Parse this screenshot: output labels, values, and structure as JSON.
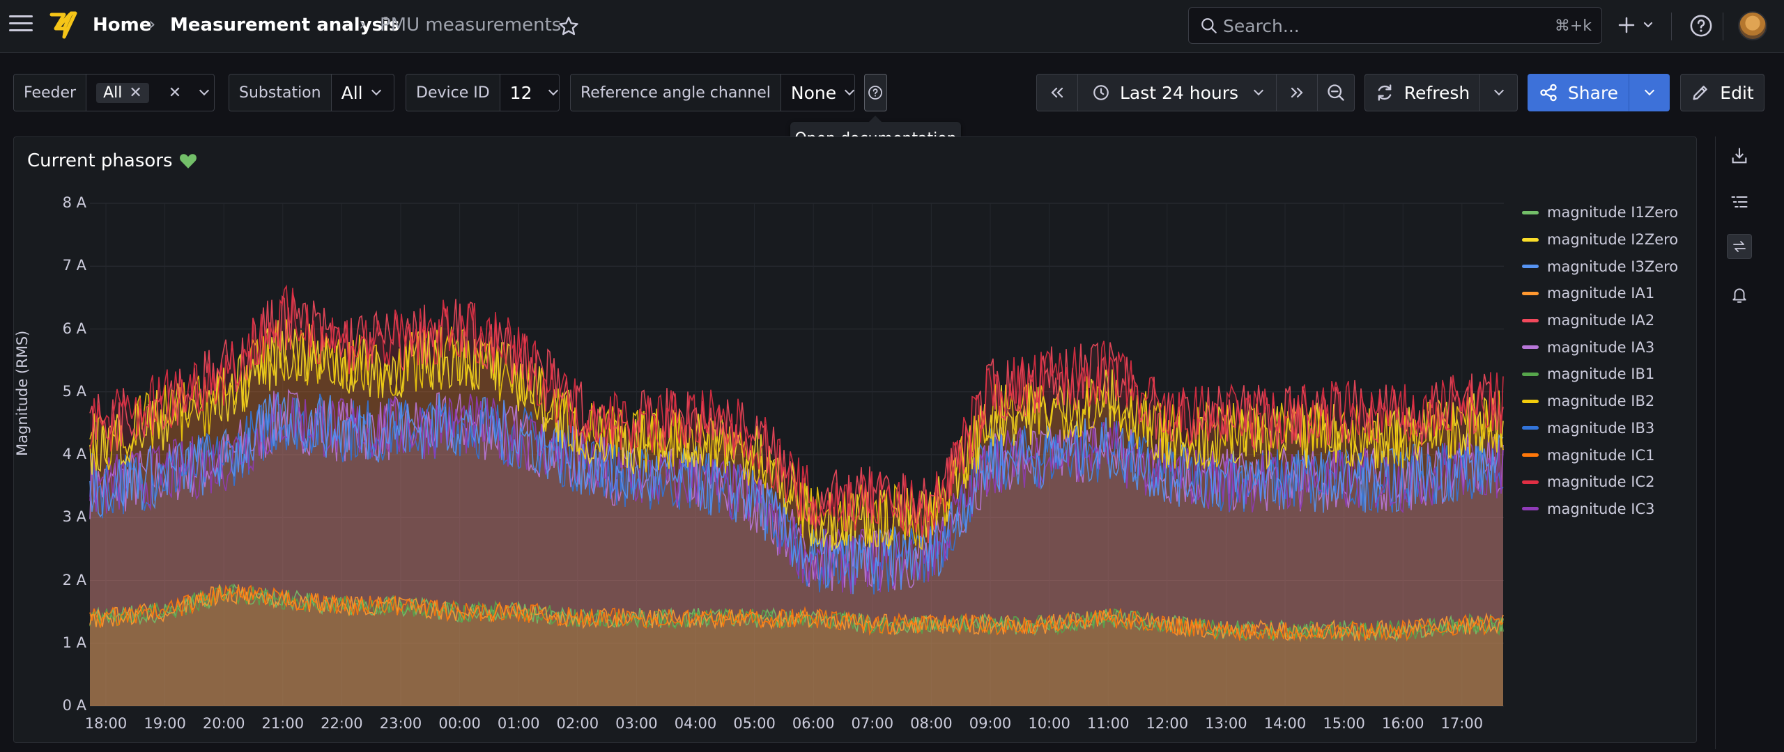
{
  "breadcrumb": {
    "home": "Home",
    "folder": "Measurement analysis",
    "current": "PMU measurements"
  },
  "search": {
    "placeholder": "Search...",
    "shortcut": "⌘+k"
  },
  "variables": {
    "feeder": {
      "label": "Feeder",
      "chip": "All"
    },
    "substation": {
      "label": "Substation",
      "value": "All"
    },
    "device": {
      "label": "Device ID",
      "value": "12"
    },
    "refchannel": {
      "label": "Reference angle channel",
      "value": "None"
    }
  },
  "tooltip": "Open documentation",
  "toolbar": {
    "time_range": "Last 24 hours",
    "refresh": "Refresh",
    "share": "Share",
    "edit": "Edit"
  },
  "panel": {
    "title": "Current phasors",
    "heart_color": "#73bf69"
  },
  "chart_data": {
    "type": "area",
    "title": "Current phasors",
    "ylabel": "Magnitude (RMS)",
    "xlabel": "",
    "ylim": [
      0,
      8
    ],
    "yticks": [
      "0 A",
      "1 A",
      "2 A",
      "3 A",
      "4 A",
      "5 A",
      "6 A",
      "7 A",
      "8 A"
    ],
    "categories": [
      "18:00",
      "19:00",
      "20:00",
      "21:00",
      "22:00",
      "23:00",
      "00:00",
      "01:00",
      "02:00",
      "03:00",
      "04:00",
      "05:00",
      "06:00",
      "07:00",
      "08:00",
      "09:00",
      "10:00",
      "11:00",
      "12:00",
      "13:00",
      "14:00",
      "15:00",
      "16:00",
      "17:00"
    ],
    "legend_position": "right",
    "grid": true,
    "series": [
      {
        "name": "magnitude I1Zero",
        "color": "#73bf69",
        "values": [
          1.4,
          1.5,
          1.8,
          1.7,
          1.6,
          1.6,
          1.5,
          1.5,
          1.4,
          1.4,
          1.4,
          1.4,
          1.4,
          1.3,
          1.3,
          1.3,
          1.3,
          1.4,
          1.3,
          1.2,
          1.2,
          1.2,
          1.2,
          1.3
        ]
      },
      {
        "name": "magnitude I2Zero",
        "color": "#fade2a",
        "values": [
          4.2,
          4.6,
          4.9,
          5.7,
          5.4,
          5.4,
          5.6,
          5.2,
          4.4,
          4.2,
          4.3,
          4.0,
          3.0,
          3.0,
          3.0,
          4.6,
          4.7,
          4.9,
          4.3,
          4.3,
          4.3,
          4.3,
          4.3,
          4.5
        ]
      },
      {
        "name": "magnitude I3Zero",
        "color": "#5794f2",
        "values": [
          3.5,
          3.7,
          3.9,
          4.6,
          4.4,
          4.4,
          4.5,
          4.3,
          3.9,
          3.6,
          3.6,
          3.3,
          2.3,
          2.3,
          2.4,
          3.9,
          4.0,
          4.1,
          3.7,
          3.6,
          3.6,
          3.6,
          3.6,
          3.8
        ]
      },
      {
        "name": "magnitude IA1",
        "color": "#ff9830",
        "values": [
          1.4,
          1.5,
          1.8,
          1.7,
          1.6,
          1.6,
          1.5,
          1.5,
          1.4,
          1.4,
          1.4,
          1.4,
          1.4,
          1.3,
          1.3,
          1.3,
          1.3,
          1.4,
          1.3,
          1.2,
          1.2,
          1.2,
          1.2,
          1.3
        ]
      },
      {
        "name": "magnitude IA2",
        "color": "#f2495c",
        "values": [
          4.5,
          4.9,
          5.3,
          6.2,
          5.8,
          5.8,
          6.0,
          5.6,
          4.7,
          4.5,
          4.6,
          4.3,
          3.2,
          3.3,
          3.1,
          5.0,
          5.2,
          5.3,
          4.6,
          4.6,
          4.6,
          4.7,
          4.6,
          4.8
        ]
      },
      {
        "name": "magnitude IA3",
        "color": "#b877d9",
        "values": [
          3.5,
          3.7,
          3.9,
          4.6,
          4.4,
          4.4,
          4.5,
          4.3,
          3.9,
          3.6,
          3.6,
          3.3,
          2.3,
          2.3,
          2.4,
          3.9,
          4.0,
          4.1,
          3.7,
          3.6,
          3.6,
          3.6,
          3.6,
          3.8
        ]
      },
      {
        "name": "magnitude IB1",
        "color": "#56a64b",
        "values": [
          1.4,
          1.5,
          1.8,
          1.7,
          1.6,
          1.6,
          1.5,
          1.5,
          1.4,
          1.4,
          1.4,
          1.4,
          1.4,
          1.3,
          1.3,
          1.3,
          1.3,
          1.4,
          1.3,
          1.2,
          1.2,
          1.2,
          1.2,
          1.3
        ]
      },
      {
        "name": "magnitude IB2",
        "color": "#f2cc0c",
        "values": [
          4.2,
          4.6,
          4.9,
          5.7,
          5.4,
          5.4,
          5.6,
          5.2,
          4.4,
          4.2,
          4.3,
          4.0,
          3.0,
          3.0,
          3.0,
          4.6,
          4.7,
          4.9,
          4.3,
          4.3,
          4.3,
          4.3,
          4.3,
          4.5
        ]
      },
      {
        "name": "magnitude IB3",
        "color": "#3274d9",
        "values": [
          3.5,
          3.7,
          3.9,
          4.6,
          4.4,
          4.4,
          4.5,
          4.3,
          3.9,
          3.6,
          3.6,
          3.3,
          2.3,
          2.3,
          2.4,
          3.9,
          4.0,
          4.1,
          3.7,
          3.6,
          3.6,
          3.6,
          3.6,
          3.8
        ]
      },
      {
        "name": "magnitude IC1",
        "color": "#ff780a",
        "values": [
          1.4,
          1.5,
          1.8,
          1.7,
          1.6,
          1.6,
          1.5,
          1.5,
          1.4,
          1.4,
          1.4,
          1.4,
          1.4,
          1.3,
          1.3,
          1.3,
          1.3,
          1.4,
          1.3,
          1.2,
          1.2,
          1.2,
          1.2,
          1.3
        ]
      },
      {
        "name": "magnitude IC2",
        "color": "#e02f44",
        "values": [
          4.5,
          4.9,
          5.3,
          6.2,
          5.8,
          5.8,
          6.0,
          5.6,
          4.7,
          4.5,
          4.6,
          4.3,
          3.2,
          3.3,
          3.1,
          5.0,
          5.2,
          5.3,
          4.6,
          4.6,
          4.6,
          4.7,
          4.6,
          4.8
        ]
      },
      {
        "name": "magnitude IC3",
        "color": "#8f3bb8",
        "values": [
          3.5,
          3.7,
          3.9,
          4.6,
          4.4,
          4.4,
          4.5,
          4.3,
          3.9,
          3.6,
          3.6,
          3.3,
          2.3,
          2.3,
          2.4,
          3.9,
          4.0,
          4.1,
          3.7,
          3.6,
          3.6,
          3.6,
          3.6,
          3.8
        ]
      }
    ]
  }
}
